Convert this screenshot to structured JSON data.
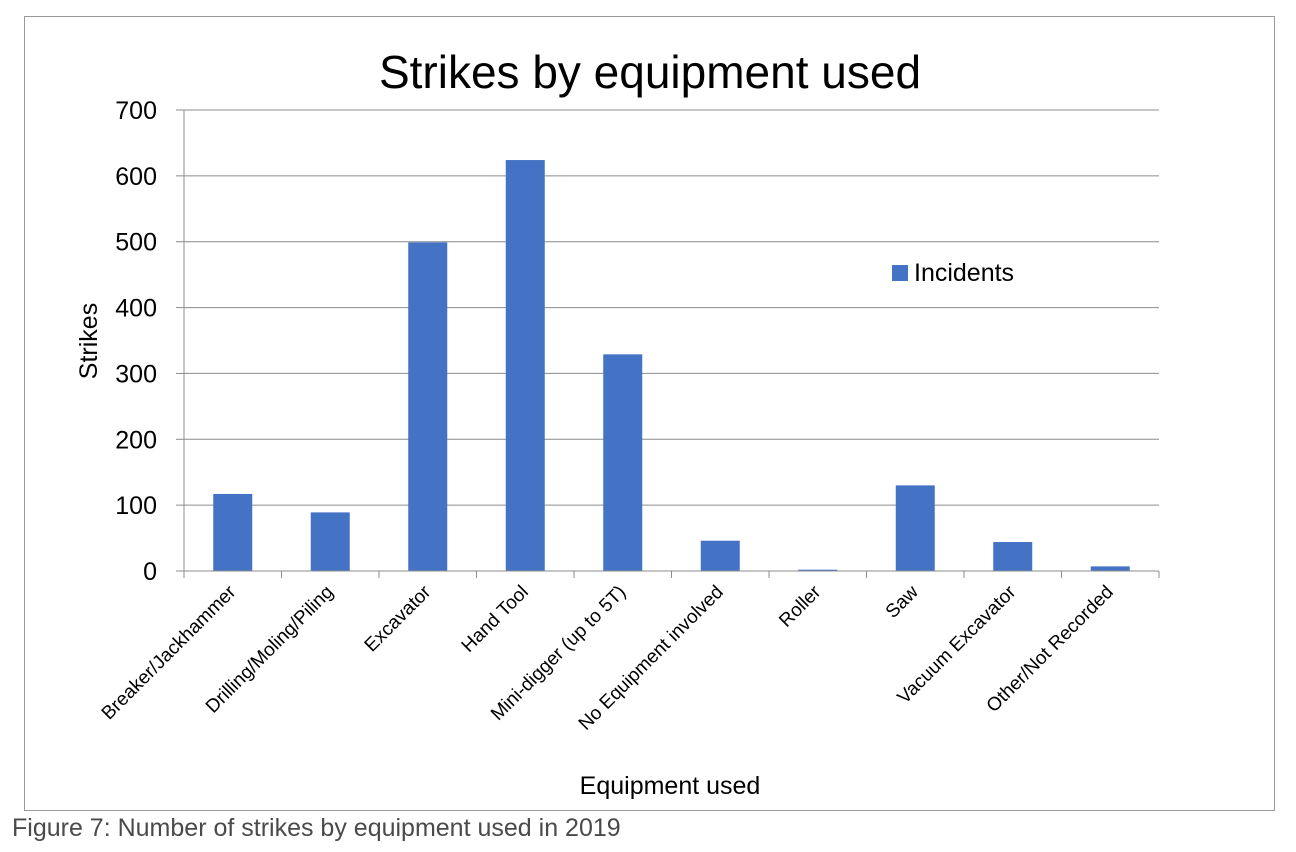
{
  "caption": "Figure 7: Number of strikes by equipment used in 2019",
  "chart_data": {
    "type": "bar",
    "title": "Strikes by equipment used",
    "xlabel": "Equipment used",
    "ylabel": "Strikes",
    "categories": [
      "Breaker/Jackhammer",
      "Drilling/Moling/Piling",
      "Excavator",
      "Hand Tool",
      "Mini-digger (up to 5T)",
      "No Equipment involved",
      "Roller",
      "Saw",
      "Vacuum Excavator",
      "Other/Not Recorded"
    ],
    "series": [
      {
        "name": "Incidents",
        "values": [
          117,
          89,
          499,
          624,
          329,
          46,
          2,
          130,
          44,
          7
        ],
        "color": "#4472c4"
      }
    ],
    "ylim": [
      0,
      700
    ],
    "yticks": [
      0,
      100,
      200,
      300,
      400,
      500,
      600,
      700
    ],
    "grid": true,
    "legend_position": "top-right"
  }
}
